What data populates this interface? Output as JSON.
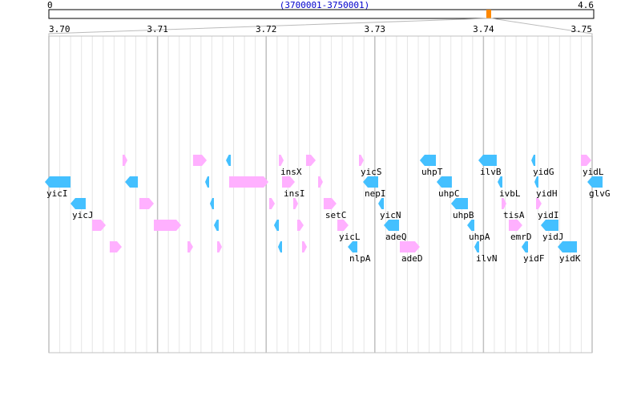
{
  "overview": {
    "min_label": "0",
    "max_label": "4.6",
    "genome_max_mb": 4.6,
    "range_label": "(3700001-3750001)",
    "view_start_mb": 3.7,
    "view_end_mb": 3.75
  },
  "axis": {
    "ticks": [
      "3.70",
      "3.71",
      "3.72",
      "3.73",
      "3.74",
      "3.75"
    ],
    "tick_values_mb": [
      3.7,
      3.71,
      3.72,
      3.73,
      3.74,
      3.75
    ],
    "minor_step_kb": 1
  },
  "colors": {
    "forward": "#ffb0ff",
    "reverse": "#44c0ff",
    "marker": "#ff8800",
    "range_label": "#0000cc"
  },
  "genes": [
    {
      "name": "",
      "lane": 0,
      "start": 3706.78,
      "end": 3707.23,
      "strand": "+"
    },
    {
      "name": "",
      "lane": 0,
      "start": 3713.27,
      "end": 3714.53,
      "strand": "+"
    },
    {
      "name": "",
      "lane": 0,
      "start": 3716.3,
      "end": 3716.74,
      "strand": "-"
    },
    {
      "name": "insX",
      "lane": 0,
      "start": 3721.17,
      "end": 3721.61,
      "strand": "+"
    },
    {
      "name": "",
      "lane": 0,
      "start": 3723.67,
      "end": 3724.56,
      "strand": "+"
    },
    {
      "name": "yicS",
      "lane": 0,
      "start": 3728.54,
      "end": 3728.98,
      "strand": "+"
    },
    {
      "name": "uhpT",
      "lane": 0,
      "start": 3734.14,
      "end": 3735.62,
      "strand": "-"
    },
    {
      "name": "ilvB",
      "lane": 0,
      "start": 3739.53,
      "end": 3741.22,
      "strand": "-"
    },
    {
      "name": "yidG",
      "lane": 0,
      "start": 3744.4,
      "end": 3744.77,
      "strand": "-"
    },
    {
      "name": "yidL",
      "lane": 0,
      "start": 3748.97,
      "end": 3749.93,
      "strand": "+"
    },
    {
      "name": "yicI",
      "lane": 1,
      "start": 3699.63,
      "end": 3701.99,
      "strand": "-"
    },
    {
      "name": "",
      "lane": 1,
      "start": 3707.01,
      "end": 3708.19,
      "strand": "-"
    },
    {
      "name": "",
      "lane": 1,
      "start": 3714.38,
      "end": 3714.75,
      "strand": "-"
    },
    {
      "name": "",
      "lane": 1,
      "start": 3716.59,
      "end": 3720.21,
      "strand": "+"
    },
    {
      "name": "insI",
      "lane": 1,
      "start": 3721.46,
      "end": 3722.64,
      "strand": "+"
    },
    {
      "name": "",
      "lane": 1,
      "start": 3724.78,
      "end": 3725.22,
      "strand": "+"
    },
    {
      "name": "nepI",
      "lane": 1,
      "start": 3728.91,
      "end": 3730.31,
      "strand": "-"
    },
    {
      "name": "uhpC",
      "lane": 1,
      "start": 3735.69,
      "end": 3737.09,
      "strand": "-"
    },
    {
      "name": "ivbL",
      "lane": 1,
      "start": 3741.3,
      "end": 3741.74,
      "strand": "-"
    },
    {
      "name": "yidH",
      "lane": 1,
      "start": 3744.69,
      "end": 3745.06,
      "strand": "-"
    },
    {
      "name": "glvG",
      "lane": 1,
      "start": 3749.56,
      "end": 3750.96,
      "strand": "-"
    },
    {
      "name": "yicJ",
      "lane": 2,
      "start": 3701.99,
      "end": 3703.39,
      "strand": "-"
    },
    {
      "name": "",
      "lane": 2,
      "start": 3708.33,
      "end": 3709.66,
      "strand": "+"
    },
    {
      "name": "",
      "lane": 2,
      "start": 3714.82,
      "end": 3715.19,
      "strand": "-"
    },
    {
      "name": "",
      "lane": 2,
      "start": 3720.28,
      "end": 3720.8,
      "strand": "+"
    },
    {
      "name": "",
      "lane": 2,
      "start": 3722.49,
      "end": 3722.94,
      "strand": "+"
    },
    {
      "name": "setC",
      "lane": 2,
      "start": 3725.29,
      "end": 3726.47,
      "strand": "+"
    },
    {
      "name": "yicN",
      "lane": 2,
      "start": 3730.31,
      "end": 3730.83,
      "strand": "-"
    },
    {
      "name": "uhpB",
      "lane": 2,
      "start": 3737.02,
      "end": 3738.57,
      "strand": "-"
    },
    {
      "name": "tisA",
      "lane": 2,
      "start": 3741.67,
      "end": 3742.11,
      "strand": "+"
    },
    {
      "name": "yidI",
      "lane": 2,
      "start": 3744.84,
      "end": 3745.35,
      "strand": "+"
    },
    {
      "name": "",
      "lane": 3,
      "start": 3703.98,
      "end": 3705.24,
      "strand": "+"
    },
    {
      "name": "",
      "lane": 3,
      "start": 3709.66,
      "end": 3712.17,
      "strand": "+"
    },
    {
      "name": "",
      "lane": 3,
      "start": 3715.19,
      "end": 3715.63,
      "strand": "-"
    },
    {
      "name": "",
      "lane": 3,
      "start": 3720.72,
      "end": 3721.17,
      "strand": "-"
    },
    {
      "name": "",
      "lane": 3,
      "start": 3722.86,
      "end": 3723.45,
      "strand": "+"
    },
    {
      "name": "yicL",
      "lane": 3,
      "start": 3726.55,
      "end": 3727.58,
      "strand": "+"
    },
    {
      "name": "adeQ",
      "lane": 3,
      "start": 3730.83,
      "end": 3732.23,
      "strand": "-"
    },
    {
      "name": "uhpA",
      "lane": 3,
      "start": 3738.5,
      "end": 3739.16,
      "strand": "-"
    },
    {
      "name": "emrD",
      "lane": 3,
      "start": 3742.33,
      "end": 3743.58,
      "strand": "+"
    },
    {
      "name": "yidJ",
      "lane": 3,
      "start": 3745.28,
      "end": 3746.9,
      "strand": "-"
    },
    {
      "name": "",
      "lane": 4,
      "start": 3705.6,
      "end": 3706.71,
      "strand": "+"
    },
    {
      "name": "",
      "lane": 4,
      "start": 3712.76,
      "end": 3713.27,
      "strand": "+"
    },
    {
      "name": "",
      "lane": 4,
      "start": 3715.49,
      "end": 3715.93,
      "strand": "+"
    },
    {
      "name": "",
      "lane": 4,
      "start": 3721.09,
      "end": 3721.46,
      "strand": "-"
    },
    {
      "name": "",
      "lane": 4,
      "start": 3723.3,
      "end": 3723.75,
      "strand": "+"
    },
    {
      "name": "nlpA",
      "lane": 4,
      "start": 3727.51,
      "end": 3728.39,
      "strand": "-"
    },
    {
      "name": "adeD",
      "lane": 4,
      "start": 3732.3,
      "end": 3734.14,
      "strand": "+"
    },
    {
      "name": "ilvN",
      "lane": 4,
      "start": 3739.16,
      "end": 3739.6,
      "strand": "-"
    },
    {
      "name": "yidF",
      "lane": 4,
      "start": 3743.51,
      "end": 3744.1,
      "strand": "-"
    },
    {
      "name": "yidK",
      "lane": 4,
      "start": 3746.83,
      "end": 3748.6,
      "strand": "-"
    }
  ]
}
